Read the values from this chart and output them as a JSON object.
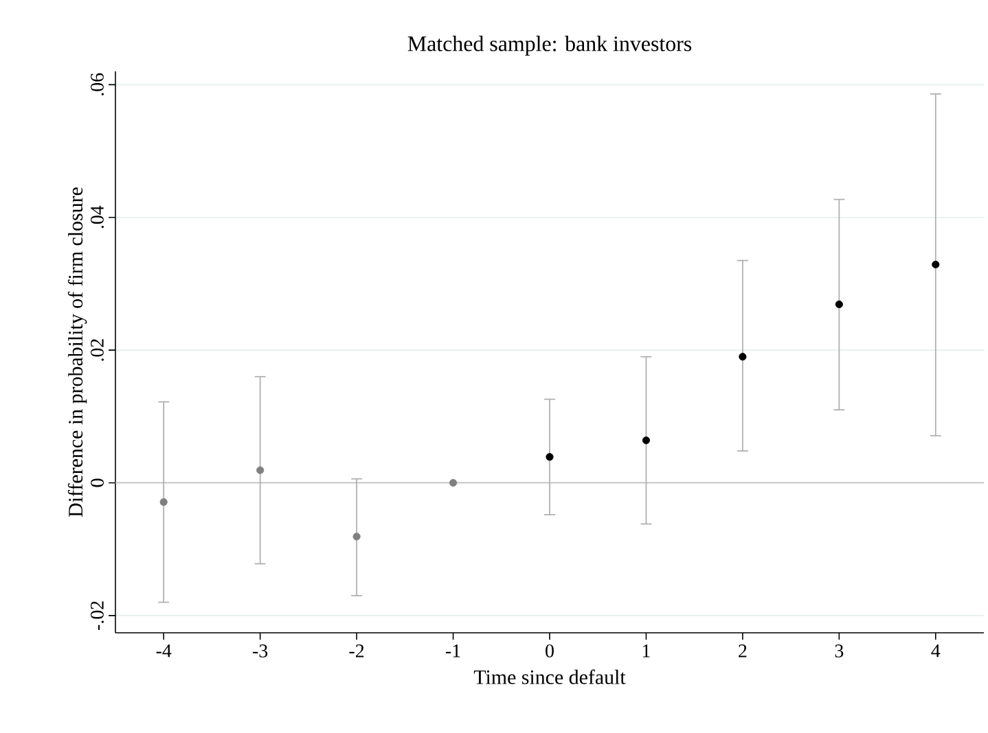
{
  "chart_data": {
    "type": "scatter",
    "title": "Matched sample: bank investors",
    "xlabel": "Time since default",
    "ylabel": "Difference in probability of firm closure",
    "series": [
      {
        "color": "#808080",
        "x": [
          -4,
          -3,
          -2,
          -1
        ],
        "values": [
          -0.0029,
          0.0019,
          -0.0081,
          0
        ],
        "errors": [
          [
            -0.018,
            0.0122
          ],
          [
            -0.0122,
            0.016
          ],
          [
            -0.017,
            0.0006
          ],
          null
        ]
      },
      {
        "color": "#000000",
        "x": [
          0,
          1,
          2,
          3,
          4
        ],
        "values": [
          0.0039,
          0.0064,
          0.019,
          0.0269,
          0.0329
        ],
        "errors": [
          [
            -0.0048,
            0.0126
          ],
          [
            -0.0062,
            0.019
          ],
          [
            0.0048,
            0.0335
          ],
          [
            0.011,
            0.0427
          ],
          [
            0.0071,
            0.0586
          ]
        ]
      }
    ],
    "xlim": [
      -4.5,
      4.5
    ],
    "xticks": [
      -4,
      -3,
      -2,
      -1,
      0,
      1,
      2,
      3,
      4
    ],
    "ylim": [
      -0.0226,
      0.062
    ],
    "yticks": [
      {
        "value": -0.02,
        "label": "-.02"
      },
      {
        "value": 0,
        "label": "0"
      },
      {
        "value": 0.02,
        "label": ".02"
      },
      {
        "value": 0.04,
        "label": ".04"
      },
      {
        "value": 0.06,
        "label": ".06"
      }
    ],
    "grid": "y",
    "marker": "circle",
    "ref_lines": [
      {
        "axis": "y",
        "value": 0,
        "color": "#c0c0c0"
      }
    ]
  }
}
